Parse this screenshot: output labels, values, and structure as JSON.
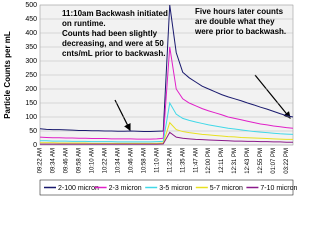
{
  "chart_data": {
    "type": "line",
    "y_label": "Particle Counts per mL",
    "categories": [
      "09:22 AM",
      null,
      "09:34 AM",
      null,
      "09:46 AM",
      null,
      "09:58 AM",
      null,
      "10:10 AM",
      null,
      "10:22 AM",
      null,
      "10:34 AM",
      null,
      "10:46 AM",
      null,
      "10:58 AM",
      null,
      "11:10 AM",
      null,
      "11:22 AM",
      null,
      "11:35 AM",
      null,
      "11:47 AM",
      null,
      "12:00 PM",
      null,
      "12:11 PM",
      null,
      "12:31 PM",
      null,
      "12:43 PM",
      null,
      "12:55 PM",
      null,
      "01:07 PM",
      null,
      "03:22 PM",
      null
    ],
    "series": [
      {
        "name": "2-100 micron",
        "color": "#1a1a6e",
        "values": [
          58,
          56,
          55,
          55,
          54,
          53,
          52,
          52,
          51,
          51,
          50,
          50,
          49,
          49,
          50,
          49,
          48,
          48,
          49,
          50,
          500,
          330,
          260,
          240,
          225,
          210,
          200,
          190,
          180,
          172,
          165,
          158,
          150,
          143,
          135,
          128,
          120,
          112,
          105,
          100
        ]
      },
      {
        "name": "2-3 micron",
        "color": "#e020c8",
        "values": [
          28,
          27,
          26,
          26,
          25,
          25,
          24,
          24,
          23,
          23,
          23,
          22,
          22,
          22,
          22,
          21,
          21,
          21,
          22,
          24,
          350,
          200,
          165,
          150,
          140,
          130,
          122,
          115,
          108,
          100,
          95,
          90,
          85,
          80,
          75,
          72,
          68,
          65,
          62,
          60
        ]
      },
      {
        "name": "3-5 micron",
        "color": "#40d8e8",
        "values": [
          15,
          15,
          14,
          14,
          14,
          13,
          13,
          13,
          12,
          12,
          12,
          12,
          11,
          11,
          11,
          11,
          11,
          11,
          12,
          13,
          150,
          110,
          95,
          88,
          82,
          77,
          72,
          68,
          64,
          60,
          57,
          54,
          51,
          48,
          46,
          44,
          42,
          40,
          39,
          38
        ]
      },
      {
        "name": "5-7 micron",
        "color": "#e8e020",
        "values": [
          8,
          8,
          8,
          7,
          7,
          7,
          7,
          7,
          6,
          6,
          6,
          6,
          6,
          6,
          6,
          6,
          6,
          6,
          6,
          7,
          80,
          55,
          48,
          44,
          41,
          38,
          36,
          34,
          32,
          30,
          29,
          27,
          26,
          25,
          24,
          23,
          22,
          21,
          20,
          20
        ]
      },
      {
        "name": "7-10 micron",
        "color": "#8a1a8a",
        "values": [
          3,
          3,
          3,
          3,
          3,
          3,
          3,
          3,
          3,
          3,
          3,
          3,
          3,
          3,
          3,
          3,
          3,
          3,
          3,
          4,
          45,
          28,
          24,
          22,
          20,
          19,
          18,
          17,
          16,
          15,
          14,
          14,
          13,
          13,
          12,
          12,
          11,
          11,
          10,
          10
        ]
      }
    ],
    "ylim": [
      0,
      500
    ],
    "yticks": [
      0,
      50,
      100,
      150,
      200,
      250,
      300,
      350,
      400,
      450,
      500
    ],
    "grid": true,
    "annotations": [
      {
        "lines": [
          "11:10am Backwash initiated",
          "on runtime.",
          "Counts had been slightly",
          "decreasing, and were at 50",
          "cnts/mL prior to backwash."
        ]
      },
      {
        "lines": [
          "Five hours later counts",
          "are double what they",
          "were prior to backwash."
        ]
      }
    ]
  }
}
